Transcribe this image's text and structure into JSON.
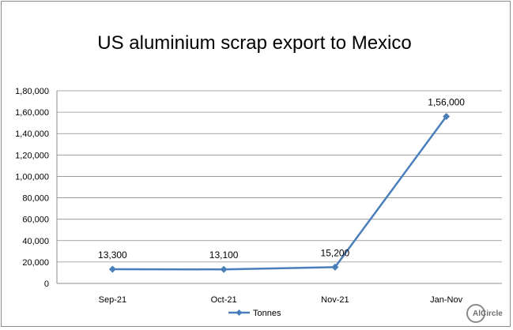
{
  "chart_data": {
    "type": "line",
    "title": "US aluminium scrap export to Mexico",
    "categories": [
      "Sep-21",
      "Oct-21",
      "Nov-21",
      "Jan-Nov"
    ],
    "series": [
      {
        "name": "Tonnes",
        "values": [
          13300,
          13100,
          15200,
          156000
        ],
        "color": "#4a7ebb"
      }
    ],
    "data_labels": [
      "13,300",
      "13,100",
      "15,200",
      "1,56,000"
    ],
    "y_ticks": [
      0,
      20000,
      40000,
      60000,
      80000,
      100000,
      120000,
      140000,
      160000,
      180000
    ],
    "y_tick_labels": [
      "0",
      "20,000",
      "40,000",
      "60,000",
      "80,000",
      "1,00,000",
      "1,20,000",
      "1,40,000",
      "1,60,000",
      "1,80,000"
    ],
    "ylim": [
      0,
      180000
    ],
    "grid": true,
    "legend_position": "bottom",
    "marker": "diamond"
  },
  "branding": {
    "logo_text": "AlCircle",
    "logo_color": "#8a8a8a"
  }
}
